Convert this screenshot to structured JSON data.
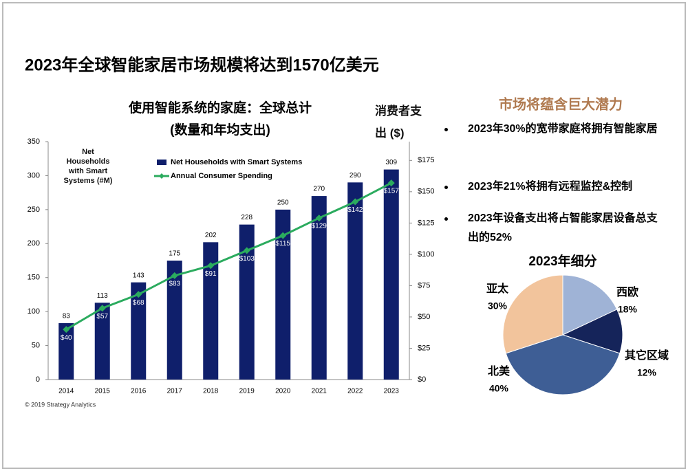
{
  "header": {
    "title": "2023年全球智能家居市场规模将达到1570亿美元"
  },
  "panel": {
    "title": "市场将蕴含巨大潜力",
    "bullets": [
      "2023年30%的宽带家庭将拥有智能家居",
      "2023年21%将拥有远程监控&控制",
      "2023年设备支出将占智能家居设备总支出的52%"
    ]
  },
  "footer": {
    "source": "© 2019 Strategy Analytics"
  },
  "chart_data": [
    {
      "type": "bar",
      "title": "使用智能系统的家庭：全球总计",
      "subtitle": "(数量和年均支出)",
      "y_label": "Net Households with Smart Systems (#M)",
      "y2_label": "消费者支出 ($)",
      "categories": [
        "2014",
        "2015",
        "2016",
        "2017",
        "2018",
        "2019",
        "2020",
        "2021",
        "2022",
        "2023"
      ],
      "series": [
        {
          "name": "Net Households with Smart Systems",
          "type": "bar",
          "color": "#0f1f6b",
          "values": [
            83,
            113,
            143,
            175,
            202,
            228,
            250,
            270,
            290,
            309
          ]
        },
        {
          "name": "Annual Consumer Spending",
          "type": "line",
          "axis": "y2",
          "color": "#2bab5e",
          "values": [
            40,
            57,
            68,
            83,
            91,
            103,
            115,
            129,
            142,
            157
          ],
          "value_labels": [
            "$40",
            "$57",
            "$68",
            "$83",
            "$91",
            "$103",
            "$115",
            "$129",
            "$142",
            "$157"
          ]
        }
      ],
      "ylim": [
        0,
        350
      ],
      "yticks": [
        0,
        50,
        100,
        150,
        200,
        250,
        300,
        350
      ],
      "y2lim": [
        0,
        190
      ],
      "y2ticks": [
        {
          "value": 0,
          "label": "$0"
        },
        {
          "value": 25,
          "label": "$25"
        },
        {
          "value": 50,
          "label": "$50"
        },
        {
          "value": 75,
          "label": "$75"
        },
        {
          "value": 100,
          "label": "$100"
        },
        {
          "value": 125,
          "label": "$125"
        },
        {
          "value": 150,
          "label": "$150"
        },
        {
          "value": 175,
          "label": "$175"
        }
      ],
      "grid": false
    },
    {
      "type": "pie",
      "title": "2023年细分",
      "categories": [
        "西欧",
        "其它区域",
        "北美",
        "亚太"
      ],
      "values": [
        18,
        12,
        40,
        30
      ],
      "value_labels": [
        "18%",
        "12%",
        "40%",
        "30%"
      ],
      "colors": [
        "#9fb3d6",
        "#15245a",
        "#3e5e95",
        "#f2c49c"
      ]
    }
  ]
}
